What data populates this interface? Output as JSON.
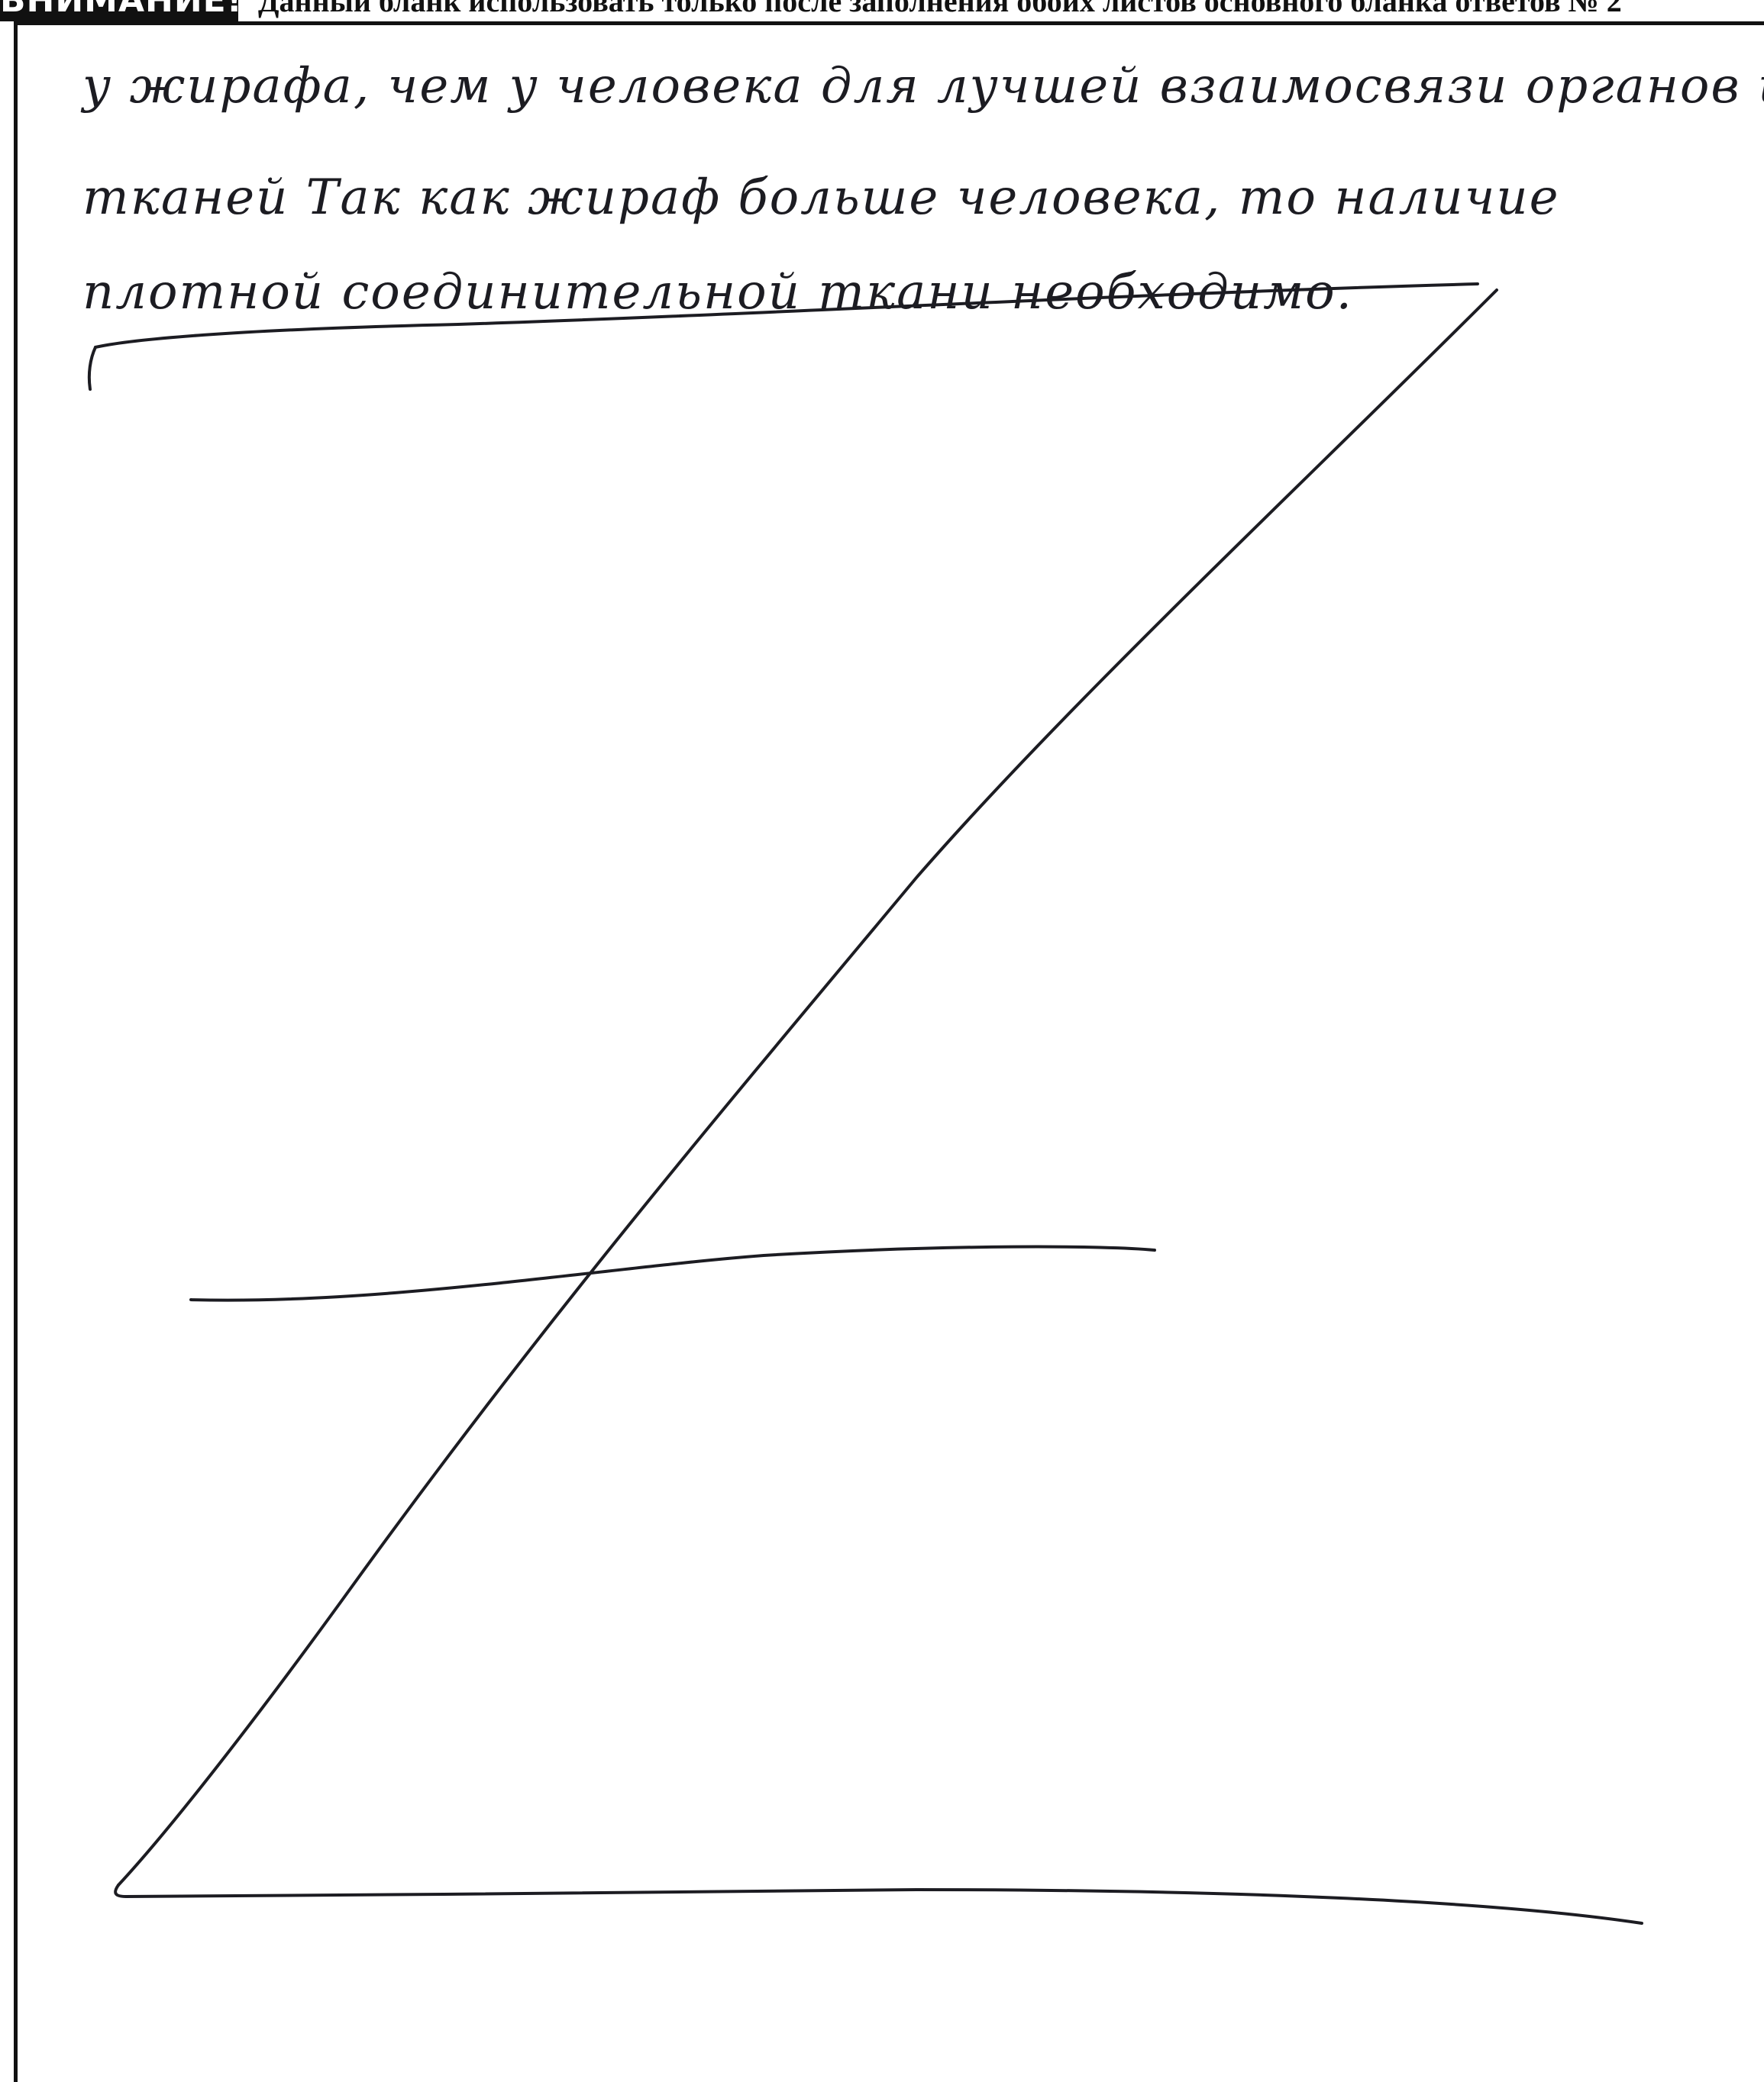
{
  "header": {
    "warning_label": "ВНИМАНИЕ!",
    "notice": "Данный бланк использовать только после заполнения обоих листов основного бланка ответов № 2"
  },
  "answer": {
    "lines": [
      "у жирафа, чем у человека для лучшей взаимосвязи органов и",
      "тканей Так как жираф больше человека, то наличие",
      "плотной соединительной ткани необходимо."
    ]
  },
  "colors": {
    "ink": "#1c1c22",
    "frame": "#111111"
  }
}
